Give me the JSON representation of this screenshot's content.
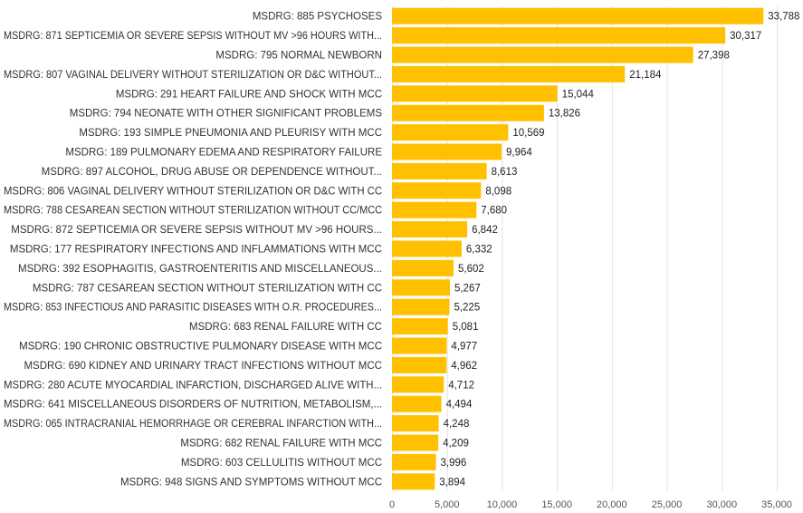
{
  "chart_data": {
    "type": "bar",
    "orientation": "horizontal",
    "bar_color": "#FFC000",
    "grid": true,
    "xlim": [
      0,
      35000
    ],
    "x_ticks": [
      0,
      5000,
      10000,
      15000,
      20000,
      25000,
      30000,
      35000
    ],
    "x_tick_labels": [
      "0",
      "5,000",
      "10,000",
      "15,000",
      "20,000",
      "25,000",
      "30,000",
      "35,000"
    ],
    "categories": [
      "MSDRG: 885 PSYCHOSES",
      "MSDRG: 871 SEPTICEMIA OR SEVERE SEPSIS WITHOUT MV >96 HOURS WITH...",
      "MSDRG: 795 NORMAL NEWBORN",
      "MSDRG: 807 VAGINAL DELIVERY WITHOUT STERILIZATION OR D&C WITHOUT...",
      "MSDRG: 291 HEART FAILURE AND SHOCK WITH MCC",
      "MSDRG: 794 NEONATE WITH OTHER SIGNIFICANT PROBLEMS",
      "MSDRG: 193 SIMPLE PNEUMONIA AND PLEURISY WITH MCC",
      "MSDRG: 189 PULMONARY EDEMA AND RESPIRATORY FAILURE",
      "MSDRG: 897 ALCOHOL, DRUG ABUSE OR DEPENDENCE WITHOUT...",
      "MSDRG: 806 VAGINAL DELIVERY WITHOUT STERILIZATION OR D&C WITH CC",
      "MSDRG: 788 CESAREAN SECTION WITHOUT STERILIZATION WITHOUT CC/MCC",
      "MSDRG: 872 SEPTICEMIA OR SEVERE SEPSIS WITHOUT MV >96 HOURS...",
      "MSDRG: 177 RESPIRATORY INFECTIONS AND INFLAMMATIONS WITH MCC",
      "MSDRG: 392 ESOPHAGITIS, GASTROENTERITIS AND MISCELLANEOUS...",
      "MSDRG: 787 CESAREAN SECTION WITHOUT STERILIZATION WITH CC",
      "MSDRG: 853 INFECTIOUS AND PARASITIC DISEASES WITH O.R. PROCEDURES...",
      "MSDRG: 683 RENAL FAILURE WITH CC",
      "MSDRG: 190 CHRONIC OBSTRUCTIVE PULMONARY DISEASE WITH MCC",
      "MSDRG: 690 KIDNEY AND URINARY TRACT INFECTIONS WITHOUT MCC",
      "MSDRG: 280 ACUTE MYOCARDIAL INFARCTION, DISCHARGED ALIVE WITH...",
      "MSDRG: 641 MISCELLANEOUS DISORDERS OF NUTRITION, METABOLISM,...",
      "MSDRG: 065 INTRACRANIAL HEMORRHAGE OR CEREBRAL INFARCTION WITH...",
      "MSDRG: 682 RENAL FAILURE WITH MCC",
      "MSDRG: 603 CELLULITIS WITHOUT MCC",
      "MSDRG: 948 SIGNS AND SYMPTOMS WITHOUT MCC"
    ],
    "values": [
      33788,
      30317,
      27398,
      21184,
      15044,
      13826,
      10569,
      9964,
      8613,
      8098,
      7680,
      6842,
      6332,
      5602,
      5267,
      5225,
      5081,
      4977,
      4962,
      4712,
      4494,
      4248,
      4209,
      3996,
      3894
    ],
    "value_labels": [
      "33,788",
      "30,317",
      "27,398",
      "21,184",
      "15,044",
      "13,826",
      "10,569",
      "9,964",
      "8,613",
      "8,098",
      "7,680",
      "6,842",
      "6,332",
      "5,602",
      "5,267",
      "5,225",
      "5,081",
      "4,977",
      "4,962",
      "4,712",
      "4,494",
      "4,248",
      "4,209",
      "3,996",
      "3,894"
    ]
  }
}
